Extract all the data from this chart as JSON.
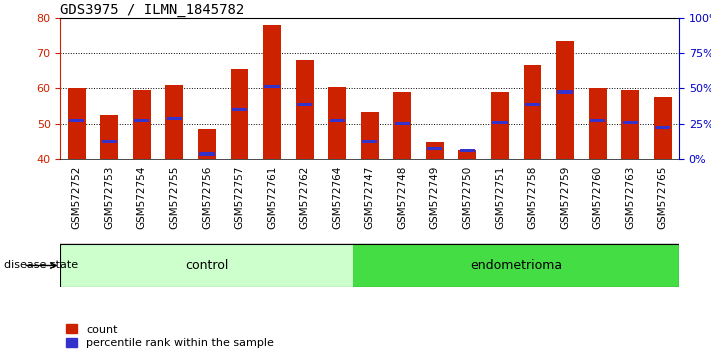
{
  "title": "GDS3975 / ILMN_1845782",
  "samples": [
    "GSM572752",
    "GSM572753",
    "GSM572754",
    "GSM572755",
    "GSM572756",
    "GSM572757",
    "GSM572761",
    "GSM572762",
    "GSM572764",
    "GSM572747",
    "GSM572748",
    "GSM572749",
    "GSM572750",
    "GSM572751",
    "GSM572758",
    "GSM572759",
    "GSM572760",
    "GSM572763",
    "GSM572765"
  ],
  "count_values": [
    60.0,
    52.5,
    59.5,
    61.0,
    48.5,
    65.5,
    78.0,
    68.0,
    60.5,
    53.5,
    59.0,
    45.0,
    42.5,
    59.0,
    66.5,
    73.5,
    60.0,
    59.5,
    57.5
  ],
  "percentile_values": [
    51.0,
    45.0,
    51.0,
    51.5,
    41.5,
    54.0,
    60.5,
    55.5,
    51.0,
    45.0,
    50.0,
    43.0,
    42.5,
    50.5,
    55.5,
    59.0,
    51.0,
    50.5,
    49.0
  ],
  "n_control": 9,
  "n_endometrioma": 10,
  "ylim_left": [
    40,
    80
  ],
  "bar_color": "#cc2200",
  "percentile_color": "#3333cc",
  "bar_width": 0.55,
  "baseline": 40,
  "control_color": "#ccffcc",
  "endometrioma_color": "#44dd44",
  "disease_state_label": "disease state",
  "control_label": "control",
  "endometrioma_label": "endometrioma",
  "legend_count_label": "count",
  "legend_percentile_label": "percentile rank within the sample",
  "title_fontsize": 10,
  "tick_fontsize": 8,
  "label_fontsize": 7.5,
  "axis_color_left": "#cc2200",
  "axis_color_right": "#0000cc",
  "gray_bg": "#d8d8d8",
  "plot_bg": "#ffffff"
}
